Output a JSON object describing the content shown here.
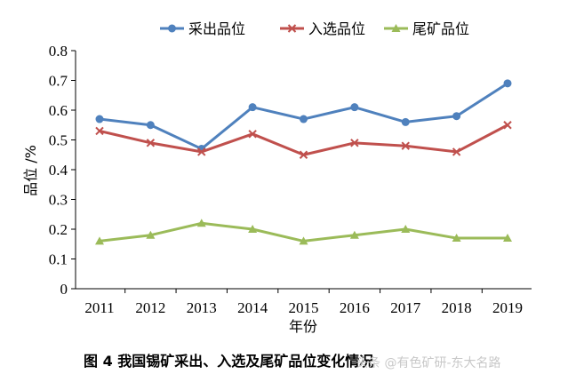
{
  "chart_data": {
    "type": "line",
    "categories": [
      "2011",
      "2012",
      "2013",
      "2014",
      "2015",
      "2016",
      "2017",
      "2018",
      "2019"
    ],
    "series": [
      {
        "name": "采出品位",
        "color": "#4f81bd",
        "marker": "circle",
        "values": [
          0.57,
          0.55,
          0.47,
          0.61,
          0.57,
          0.61,
          0.56,
          0.58,
          0.69
        ]
      },
      {
        "name": "入选品位",
        "color": "#c0504d",
        "marker": "x",
        "values": [
          0.53,
          0.49,
          0.46,
          0.52,
          0.45,
          0.49,
          0.48,
          0.46,
          0.55
        ]
      },
      {
        "name": "尾矿品位",
        "color": "#9bbb59",
        "marker": "triangle",
        "values": [
          0.16,
          0.18,
          0.22,
          0.2,
          0.16,
          0.18,
          0.2,
          0.17,
          0.17
        ]
      }
    ],
    "xlabel": "年份",
    "ylabel": "品位 /%",
    "ylim": [
      0,
      0.8
    ],
    "yticks": [
      "0",
      "0.1",
      "0.2",
      "0.3",
      "0.4",
      "0.5",
      "0.6",
      "0.7",
      "0.8"
    ],
    "grid": false,
    "legend_position": "top"
  },
  "caption": "图 4   我国锡矿采出、入选及尾矿品位变化情况",
  "watermark": "头条 @有色矿研-东大名路"
}
